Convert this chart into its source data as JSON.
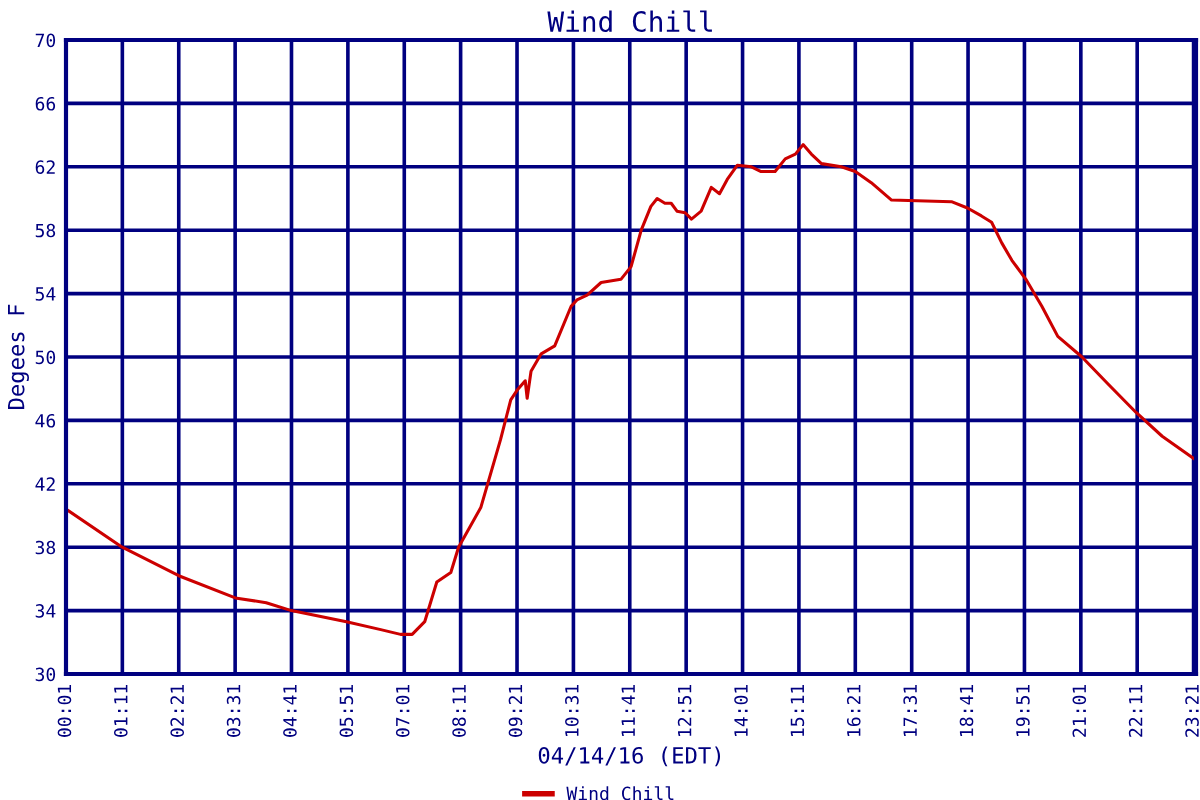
{
  "chart_data": {
    "type": "line",
    "title": "Wind Chill",
    "xlabel": "04/14/16 (EDT)",
    "ylabel": "Degees F",
    "x": [
      0.02,
      1.18,
      2.35,
      3.52,
      4.16,
      4.68,
      5.82,
      6.53,
      6.94,
      7.18,
      7.44,
      7.69,
      7.98,
      8.14,
      8.6,
      9.01,
      9.22,
      9.35,
      9.52,
      9.56,
      9.64,
      9.85,
      10.13,
      10.47,
      10.59,
      10.8,
      11.09,
      11.5,
      11.71,
      11.92,
      12.12,
      12.25,
      12.41,
      12.54,
      12.66,
      12.83,
      12.96,
      13.16,
      13.37,
      13.54,
      13.7,
      13.91,
      14.2,
      14.4,
      14.69,
      14.9,
      15.11,
      15.27,
      15.44,
      15.65,
      16.06,
      16.35,
      16.68,
      17.1,
      18.34,
      18.67,
      18.96,
      19.17,
      19.38,
      19.59,
      19.88,
      20.21,
      20.54,
      21.04,
      21.58,
      22.16,
      22.7,
      23.4
    ],
    "series": [
      {
        "name": "Wind Chill",
        "color": "#cc0000",
        "values": [
          40.4,
          38.0,
          36.2,
          34.8,
          34.5,
          34.0,
          33.3,
          32.8,
          32.5,
          32.5,
          33.3,
          35.8,
          36.4,
          38.0,
          40.5,
          44.8,
          47.3,
          47.9,
          48.5,
          47.4,
          49.1,
          50.2,
          50.7,
          53.2,
          53.6,
          53.9,
          54.7,
          54.9,
          55.7,
          58.0,
          59.5,
          60.0,
          59.7,
          59.7,
          59.2,
          59.1,
          58.7,
          59.2,
          60.7,
          60.3,
          61.2,
          62.1,
          62.0,
          61.7,
          61.7,
          62.5,
          62.8,
          63.4,
          62.8,
          62.2,
          62.0,
          61.7,
          61.0,
          59.9,
          59.8,
          59.4,
          58.9,
          58.5,
          57.2,
          56.1,
          54.9,
          53.2,
          51.3,
          50.0,
          48.3,
          46.5,
          45.0,
          43.5
        ]
      }
    ],
    "xlim": [
      0.017,
      23.4
    ],
    "ylim": [
      30,
      70
    ],
    "yticks": [
      30,
      34,
      38,
      42,
      46,
      50,
      54,
      58,
      62,
      66,
      70
    ],
    "xticks": [
      {
        "value": 0.017,
        "label": "00:01"
      },
      {
        "value": 1.183,
        "label": "01:11"
      },
      {
        "value": 2.35,
        "label": "02:21"
      },
      {
        "value": 3.517,
        "label": "03:31"
      },
      {
        "value": 4.683,
        "label": "04:41"
      },
      {
        "value": 5.85,
        "label": "05:51"
      },
      {
        "value": 7.017,
        "label": "07:01"
      },
      {
        "value": 8.183,
        "label": "08:11"
      },
      {
        "value": 9.35,
        "label": "09:21"
      },
      {
        "value": 10.517,
        "label": "10:31"
      },
      {
        "value": 11.683,
        "label": "11:41"
      },
      {
        "value": 12.85,
        "label": "12:51"
      },
      {
        "value": 14.017,
        "label": "14:01"
      },
      {
        "value": 15.183,
        "label": "15:11"
      },
      {
        "value": 16.35,
        "label": "16:21"
      },
      {
        "value": 17.517,
        "label": "17:31"
      },
      {
        "value": 18.683,
        "label": "18:41"
      },
      {
        "value": 19.85,
        "label": "19:51"
      },
      {
        "value": 21.017,
        "label": "21:01"
      },
      {
        "value": 22.183,
        "label": "22:11"
      },
      {
        "value": 23.35,
        "label": "23:21"
      }
    ],
    "grid": true,
    "legend": "bottom",
    "marker": "none",
    "line_style": "solid"
  }
}
